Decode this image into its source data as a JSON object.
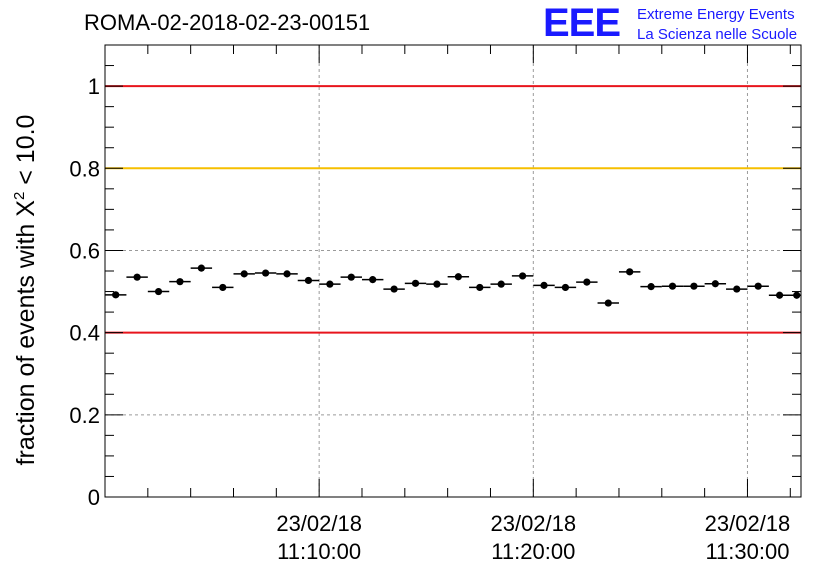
{
  "chart_data": {
    "type": "scatter",
    "title": "ROMA-02-2018-02-23-00151",
    "ylabel_main": "fraction of events with Χ",
    "ylabel_sup": "2",
    "ylabel_tail": " < 10.0",
    "xlabel": "",
    "ylim": [
      0,
      1.1
    ],
    "yticks": [
      "0",
      "0.2",
      "0.4",
      "0.6",
      "0.8",
      "1"
    ],
    "ytick_values": [
      0,
      0.2,
      0.4,
      0.6,
      0.8,
      1.0
    ],
    "x_unit": "minutes after 11:00:00 (23/02/18)",
    "xlim_minutes": [
      0.0,
      32.5
    ],
    "xticks": [
      {
        "date": "23/02/18",
        "time": "11:10:00",
        "minutes": 10.0
      },
      {
        "date": "23/02/18",
        "time": "11:20:00",
        "minutes": 20.0
      },
      {
        "date": "23/02/18",
        "time": "11:30:00",
        "minutes": 30.0
      }
    ],
    "grid": true,
    "reference_lines": [
      {
        "y": 1.0,
        "color": "#e8141c"
      },
      {
        "y": 0.8,
        "color": "#f6bf00"
      },
      {
        "y": 0.4,
        "color": "#e8141c"
      }
    ],
    "bin_width_minutes": 1.0,
    "points": [
      {
        "x": 0.5,
        "y": 0.492
      },
      {
        "x": 1.5,
        "y": 0.535
      },
      {
        "x": 2.5,
        "y": 0.5
      },
      {
        "x": 3.5,
        "y": 0.524
      },
      {
        "x": 4.5,
        "y": 0.557
      },
      {
        "x": 5.5,
        "y": 0.51
      },
      {
        "x": 6.5,
        "y": 0.543
      },
      {
        "x": 7.5,
        "y": 0.545
      },
      {
        "x": 8.5,
        "y": 0.543
      },
      {
        "x": 9.5,
        "y": 0.527
      },
      {
        "x": 10.5,
        "y": 0.518
      },
      {
        "x": 11.5,
        "y": 0.535
      },
      {
        "x": 12.5,
        "y": 0.529
      },
      {
        "x": 13.5,
        "y": 0.506
      },
      {
        "x": 14.5,
        "y": 0.52
      },
      {
        "x": 15.5,
        "y": 0.518
      },
      {
        "x": 16.5,
        "y": 0.536
      },
      {
        "x": 17.5,
        "y": 0.51
      },
      {
        "x": 18.5,
        "y": 0.518
      },
      {
        "x": 19.5,
        "y": 0.538
      },
      {
        "x": 20.5,
        "y": 0.515
      },
      {
        "x": 21.5,
        "y": 0.51
      },
      {
        "x": 22.5,
        "y": 0.523
      },
      {
        "x": 23.5,
        "y": 0.472
      },
      {
        "x": 24.5,
        "y": 0.548
      },
      {
        "x": 25.5,
        "y": 0.512
      },
      {
        "x": 26.5,
        "y": 0.513
      },
      {
        "x": 27.5,
        "y": 0.513
      },
      {
        "x": 28.5,
        "y": 0.519
      },
      {
        "x": 29.5,
        "y": 0.506
      },
      {
        "x": 30.5,
        "y": 0.513
      },
      {
        "x": 31.5,
        "y": 0.491
      },
      {
        "x": 32.3,
        "y": 0.491
      }
    ],
    "error_y": 0.008,
    "marker_color": "#000000"
  },
  "logo": {
    "letters": "EEE",
    "line1": "Extreme Energy Events",
    "line2": "La Scienza nelle Scuole",
    "color": "#1a1aff"
  }
}
